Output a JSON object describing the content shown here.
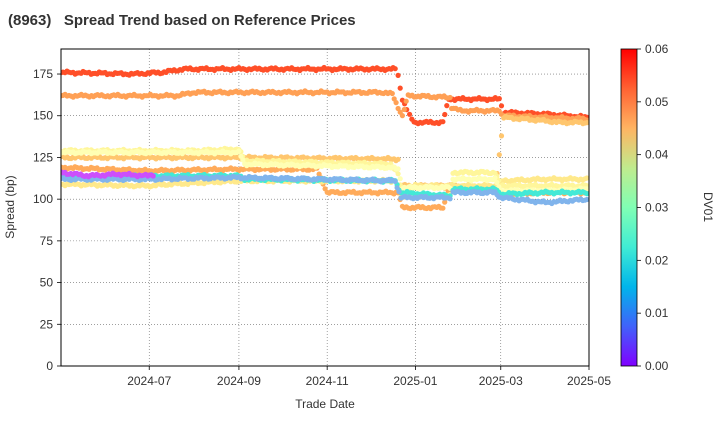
{
  "chart_data": {
    "type": "scatter",
    "title": "(8963)   Spread Trend based on Reference Prices",
    "xlabel": "Trade Date",
    "ylabel": "Spread (bp)",
    "colorbar_label": "DV01",
    "x_ticks": [
      "2024-07",
      "2024-09",
      "2024-11",
      "2025-01",
      "2025-03",
      "2025-05"
    ],
    "x_range": [
      "2024-05-01",
      "2025-05-01"
    ],
    "y_ticks": [
      0,
      25,
      50,
      75,
      100,
      125,
      150,
      175
    ],
    "ylim": [
      0,
      190
    ],
    "colorbar_ticks": [
      "0.00",
      "0.01",
      "0.02",
      "0.03",
      "0.04",
      "0.05",
      "0.06"
    ],
    "colorbar_range": [
      0,
      0.06
    ],
    "grid": true,
    "colormap": "rainbow",
    "series": [
      {
        "dv01": 0.054,
        "points": [
          [
            "2024-05-01",
            176
          ],
          [
            "2024-06-20",
            175
          ],
          [
            "2024-07-10",
            176
          ],
          [
            "2024-07-25",
            178
          ],
          [
            "2024-09-01",
            178
          ],
          [
            "2024-12-18",
            178
          ],
          [
            "2024-12-20",
            174
          ],
          [
            "2024-12-23",
            160
          ],
          [
            "2024-12-26",
            154
          ],
          [
            "2024-12-28",
            150
          ],
          [
            "2024-12-31",
            146
          ],
          [
            "2025-01-20",
            146
          ],
          [
            "2025-01-24",
            160
          ],
          [
            "2025-02-28",
            160
          ],
          [
            "2025-03-03",
            152
          ],
          [
            "2025-04-01",
            151
          ],
          [
            "2025-05-01",
            149
          ]
        ]
      },
      {
        "dv01": 0.047,
        "points": [
          [
            "2024-05-01",
            162
          ],
          [
            "2024-07-20",
            162
          ],
          [
            "2024-08-01",
            164
          ],
          [
            "2024-12-10",
            164
          ],
          [
            "2024-12-16",
            163
          ],
          [
            "2024-12-20",
            155
          ],
          [
            "2024-12-23",
            150
          ],
          [
            "2024-12-27",
            162
          ],
          [
            "2025-01-25",
            161
          ],
          [
            "2025-01-26",
            155
          ],
          [
            "2025-02-01",
            153
          ],
          [
            "2025-02-28",
            153
          ],
          [
            "2025-03-03",
            150
          ],
          [
            "2025-04-01",
            149
          ],
          [
            "2025-05-01",
            148
          ]
        ]
      },
      {
        "dv01": 0.043,
        "points": [
          [
            "2024-05-01",
            125
          ],
          [
            "2024-09-01",
            125
          ],
          [
            "2024-12-20",
            124
          ],
          [
            "2024-12-22",
            108
          ],
          [
            "2025-01-20",
            108
          ],
          [
            "2025-01-25",
            105
          ],
          [
            "2025-02-25",
            105
          ],
          [
            "2025-03-03",
            149
          ],
          [
            "2025-04-01",
            147
          ],
          [
            "2025-04-10",
            146
          ],
          [
            "2025-05-01",
            146
          ]
        ]
      },
      {
        "dv01": 0.046,
        "points": [
          [
            "2024-05-01",
            119
          ],
          [
            "2024-07-01",
            117
          ],
          [
            "2024-09-01",
            118
          ],
          [
            "2024-10-25",
            118
          ],
          [
            "2024-11-01",
            104
          ],
          [
            "2024-12-20",
            104
          ],
          [
            "2024-12-23",
            95
          ],
          [
            "2025-01-20",
            95
          ],
          [
            "2025-01-25",
            108
          ],
          [
            "2025-02-25",
            106
          ],
          [
            "2025-03-01",
            103
          ],
          [
            "2025-04-01",
            104
          ],
          [
            "2025-05-01",
            104
          ]
        ]
      },
      {
        "dv01": 0.038,
        "points": [
          [
            "2024-05-01",
            109
          ],
          [
            "2024-06-30",
            108
          ],
          [
            "2024-07-15",
            109
          ],
          [
            "2024-09-01",
            111
          ],
          [
            "2024-12-18",
            111
          ],
          [
            "2024-12-22",
            101
          ],
          [
            "2025-01-01",
            108
          ],
          [
            "2025-02-25",
            108
          ],
          [
            "2025-03-03",
            111
          ],
          [
            "2025-04-01",
            112
          ],
          [
            "2025-05-01",
            112
          ]
        ]
      },
      {
        "dv01": 0.035,
        "points": [
          [
            "2024-05-01",
            129
          ],
          [
            "2024-08-01",
            129
          ],
          [
            "2024-09-01",
            130
          ],
          [
            "2024-09-05",
            123
          ],
          [
            "2024-12-15",
            121
          ],
          [
            "2024-12-20",
            115
          ],
          [
            "2024-12-23",
            102
          ],
          [
            "2025-01-25",
            102
          ],
          [
            "2025-01-27",
            116
          ],
          [
            "2025-02-25",
            116
          ],
          [
            "2025-03-01",
            108
          ],
          [
            "2025-04-01",
            108
          ],
          [
            "2025-05-01",
            108
          ]
        ]
      },
      {
        "dv01": 0.03,
        "points": [
          [
            "2024-05-01",
            128
          ],
          [
            "2024-09-01",
            128
          ],
          [
            "2024-09-05",
            121
          ],
          [
            "2024-12-15",
            119
          ],
          [
            "2024-12-20",
            118
          ],
          [
            "2024-12-23",
            107
          ],
          [
            "2025-01-25",
            107
          ],
          [
            "2025-01-27",
            112
          ],
          [
            "2025-02-25",
            112
          ],
          [
            "2025-03-01",
            105
          ],
          [
            "2025-04-01",
            105
          ],
          [
            "2025-05-01",
            106
          ]
        ]
      },
      {
        "dv01": 0.022,
        "points": [
          [
            "2024-05-01",
            113
          ],
          [
            "2024-07-01",
            114
          ],
          [
            "2024-09-01",
            114
          ],
          [
            "2024-09-05",
            112
          ],
          [
            "2024-12-18",
            111
          ],
          [
            "2024-12-22",
            104
          ],
          [
            "2025-01-25",
            102
          ],
          [
            "2025-01-27",
            106
          ],
          [
            "2025-02-25",
            106
          ],
          [
            "2025-03-01",
            103
          ],
          [
            "2025-04-01",
            104
          ],
          [
            "2025-05-01",
            104
          ]
        ]
      },
      {
        "dv01": 0.015,
        "points": [
          [
            "2024-05-01",
            112
          ],
          [
            "2024-07-01",
            112
          ],
          [
            "2024-09-01",
            113
          ],
          [
            "2024-12-18",
            111
          ],
          [
            "2024-12-22",
            101
          ],
          [
            "2025-01-25",
            101
          ],
          [
            "2025-01-27",
            104
          ],
          [
            "2025-02-25",
            104
          ],
          [
            "2025-03-01",
            101
          ],
          [
            "2025-04-01",
            98
          ],
          [
            "2025-05-01",
            100
          ]
        ]
      },
      {
        "dv01": 0.006,
        "points": [
          [
            "2024-05-01",
            116
          ],
          [
            "2024-05-20",
            114
          ],
          [
            "2024-06-10",
            115
          ],
          [
            "2024-06-30",
            114
          ],
          [
            "2024-07-05",
            115
          ]
        ]
      }
    ]
  }
}
